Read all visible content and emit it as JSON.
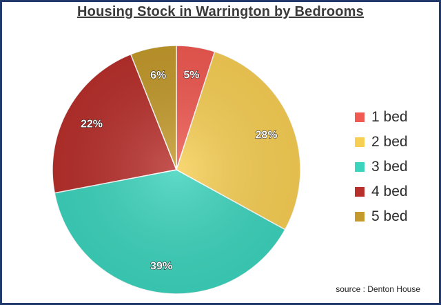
{
  "chart_data": {
    "type": "pie",
    "title": "Housing Stock in Warrington by Bedrooms",
    "categories": [
      "1 bed",
      "2 bed",
      "3 bed",
      "4 bed",
      "5 bed"
    ],
    "values": [
      5,
      28,
      39,
      22,
      6
    ],
    "labels": [
      "5%",
      "28%",
      "39%",
      "22%",
      "6%"
    ],
    "colors": [
      "#f05a52",
      "#f7cf55",
      "#3dd4bd",
      "#b8302c",
      "#c49a2c"
    ],
    "legend_position": "right",
    "source": "source : Denton House"
  }
}
